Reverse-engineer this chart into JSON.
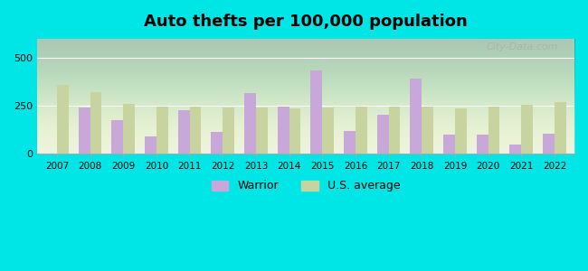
{
  "title": "Auto thefts per 100,000 population",
  "years": [
    2007,
    2008,
    2009,
    2010,
    2011,
    2012,
    2013,
    2014,
    2015,
    2016,
    2017,
    2018,
    2019,
    2020,
    2021,
    2022
  ],
  "warrior": [
    0,
    240,
    175,
    90,
    225,
    115,
    315,
    248,
    435,
    120,
    205,
    390,
    100,
    100,
    50,
    105
  ],
  "us_average": [
    360,
    320,
    260,
    245,
    245,
    242,
    242,
    235,
    242,
    248,
    248,
    245,
    235,
    248,
    255,
    268
  ],
  "warrior_color": "#c8a8d8",
  "us_avg_color": "#c8d4a0",
  "background_top": "#e8f0e0",
  "background_bottom": "#f5f5e8",
  "outer_bg": "#00e5e5",
  "ylim": [
    0,
    600
  ],
  "yticks": [
    0,
    250,
    500
  ],
  "bar_width": 0.35,
  "legend_labels": [
    "Warrior",
    "U.S. average"
  ],
  "watermark": "City-Data.com"
}
